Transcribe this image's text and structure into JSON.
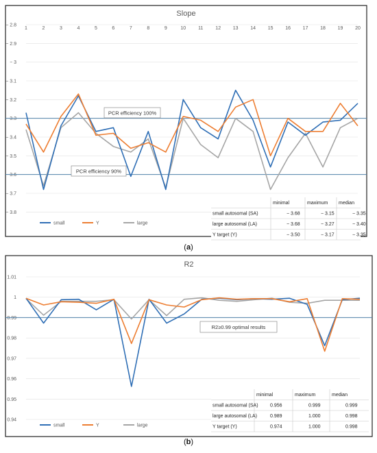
{
  "colors": {
    "small": "#2e6eb5",
    "Y": "#ed7d31",
    "large": "#a5a5a5",
    "reference": "#4f81a8"
  },
  "chart_data": [
    {
      "type": "line",
      "caption": "(a)",
      "title": "Slope",
      "x": [
        1,
        2,
        3,
        4,
        5,
        6,
        7,
        8,
        9,
        10,
        11,
        12,
        13,
        14,
        15,
        16,
        17,
        18,
        19,
        20
      ],
      "ylim": [
        -3.85,
        -2.8
      ],
      "yticks": [
        -2.8,
        -2.9,
        -3,
        -3.1,
        -3.2,
        -3.3,
        -3.4,
        -3.5,
        -3.6,
        -3.7,
        -3.8
      ],
      "ytick_labels": [
        "− 2.8",
        "− 2.9",
        "− 3",
        "− 3.1",
        "− 3.2",
        "− 3.3",
        "− 3.4",
        "− 3.5",
        "− 3.6",
        "− 3.7",
        "− 3.8"
      ],
      "reference_lines": [
        {
          "y": -3.3,
          "label": "PCR efficiency 100%"
        },
        {
          "y": -3.6,
          "label": "PCR efficiency 90%"
        }
      ],
      "series": [
        {
          "name": "small",
          "values": [
            -3.27,
            -3.68,
            -3.34,
            -3.18,
            -3.37,
            -3.35,
            -3.61,
            -3.37,
            -3.68,
            -3.2,
            -3.35,
            -3.41,
            -3.15,
            -3.31,
            -3.56,
            -3.32,
            -3.39,
            -3.32,
            -3.31,
            -3.22
          ]
        },
        {
          "name": "Y",
          "values": [
            -3.33,
            -3.48,
            -3.29,
            -3.17,
            -3.39,
            -3.38,
            -3.46,
            -3.43,
            -3.48,
            -3.29,
            -3.31,
            -3.37,
            -3.24,
            -3.2,
            -3.5,
            -3.3,
            -3.37,
            -3.37,
            -3.22,
            -3.34
          ]
        },
        {
          "name": "large",
          "values": [
            -3.36,
            -3.66,
            -3.35,
            -3.27,
            -3.38,
            -3.45,
            -3.48,
            -3.41,
            -3.67,
            -3.3,
            -3.44,
            -3.51,
            -3.3,
            -3.37,
            -3.68,
            -3.51,
            -3.38,
            -3.56,
            -3.35,
            -3.3
          ]
        }
      ],
      "legend": [
        "small",
        "Y",
        "large"
      ],
      "table": {
        "headers": [
          "",
          "minimal",
          "maximum",
          "median"
        ],
        "rows": [
          [
            "small autosomal (SA)",
            "− 3.68",
            "− 3.15",
            "− 3.35"
          ],
          [
            "large autosomal (LA)",
            "− 3.68",
            "− 3.27",
            "− 3.40"
          ],
          [
            "Y target (Y)",
            "− 3.50",
            "− 3.17",
            "− 3.35"
          ]
        ]
      }
    },
    {
      "type": "line",
      "caption": "(b)",
      "title": "R2",
      "x": [
        1,
        2,
        3,
        4,
        5,
        6,
        7,
        8,
        9,
        10,
        11,
        12,
        13,
        14,
        15,
        16,
        17,
        18,
        19,
        20
      ],
      "ylim": [
        0.94,
        1.01
      ],
      "yticks": [
        1.01,
        1,
        0.99,
        0.98,
        0.97,
        0.96,
        0.95,
        0.94
      ],
      "ytick_labels": [
        "1.01",
        "1",
        "0.99",
        "0.98",
        "0.97",
        "0.96",
        "0.95",
        "0.94"
      ],
      "reference_lines": [
        {
          "y": 0.99,
          "label": "R2≥0.99 optimal results"
        }
      ],
      "series": [
        {
          "name": "small",
          "values": [
            0.9995,
            0.9873,
            0.9988,
            0.999,
            0.9938,
            0.999,
            0.9562,
            0.999,
            0.9873,
            0.9918,
            0.999,
            0.9995,
            0.9988,
            0.9993,
            0.999,
            0.9995,
            0.9965,
            0.9762,
            0.9988,
            0.9995
          ]
        },
        {
          "name": "Y",
          "values": [
            0.9995,
            0.9962,
            0.9978,
            0.9975,
            0.997,
            0.999,
            0.9773,
            0.9988,
            0.9962,
            0.9952,
            0.9988,
            0.9997,
            0.999,
            0.9993,
            0.9993,
            0.9978,
            0.9993,
            0.9735,
            0.9993,
            0.999
          ]
        },
        {
          "name": "large",
          "values": [
            0.9993,
            0.9912,
            0.998,
            0.998,
            0.998,
            0.9988,
            0.9893,
            0.9988,
            0.991,
            0.999,
            0.9997,
            0.9985,
            0.998,
            0.9988,
            0.9995,
            0.9975,
            0.997,
            0.9985,
            0.9985,
            0.9985
          ]
        }
      ],
      "legend": [
        "small",
        "Y",
        "large"
      ],
      "table": {
        "headers": [
          "",
          "minimal",
          "maximum",
          "median"
        ],
        "rows": [
          [
            "small autosomal (SA)",
            "0.956",
            "0.999",
            "0.999"
          ],
          [
            "large autosomal (LA)",
            "0.989",
            "1.000",
            "0.998"
          ],
          [
            "Y target (Y)",
            "0.974",
            "1.000",
            "0.998"
          ]
        ]
      }
    }
  ]
}
